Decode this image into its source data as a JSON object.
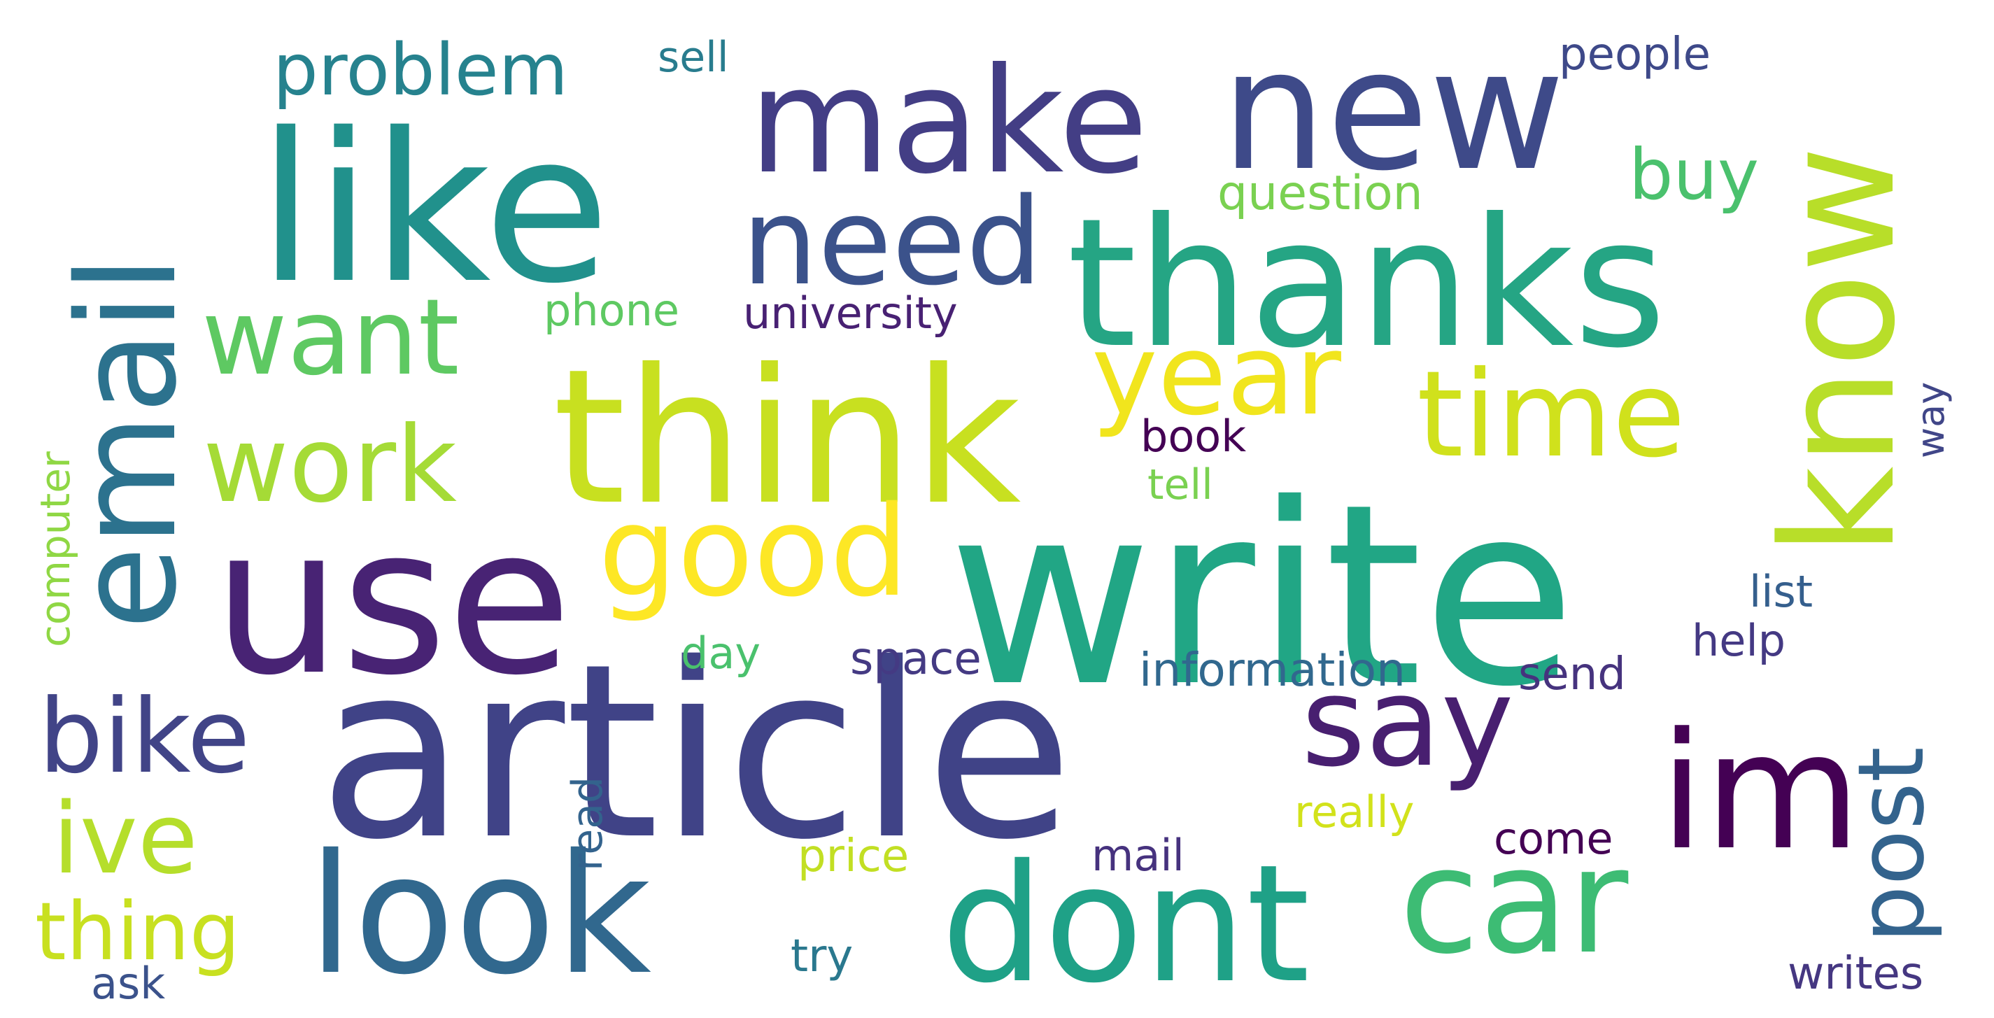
{
  "words": [
    {
      "text": "write",
      "color": "#21a685",
      "rotate": false
    },
    {
      "text": "article",
      "color": "#404387",
      "rotate": false
    },
    {
      "text": "thanks",
      "color": "#25a584",
      "rotate": false
    },
    {
      "text": "like",
      "color": "#21918c",
      "rotate": false
    },
    {
      "text": "use",
      "color": "#482374",
      "rotate": false
    },
    {
      "text": "think",
      "color": "#c8e020",
      "rotate": false
    },
    {
      "text": "know",
      "color": "#b8de29",
      "rotate": true
    },
    {
      "text": "email",
      "color": "#2c728e",
      "rotate": true
    },
    {
      "text": "new",
      "color": "#3e4a89",
      "rotate": false
    },
    {
      "text": "make",
      "color": "#433e85",
      "rotate": false
    },
    {
      "text": "dont",
      "color": "#1fa187",
      "rotate": false
    },
    {
      "text": "look",
      "color": "#31688e",
      "rotate": false
    },
    {
      "text": "car",
      "color": "#3dbc74",
      "rotate": false
    },
    {
      "text": "im",
      "color": "#440154",
      "rotate": false
    },
    {
      "text": "good",
      "color": "#fde725",
      "rotate": false
    },
    {
      "text": "need",
      "color": "#3b528b",
      "rotate": false
    },
    {
      "text": "time",
      "color": "#d0e11c",
      "rotate": false
    },
    {
      "text": "year",
      "color": "#f1e51d",
      "rotate": false
    },
    {
      "text": "say",
      "color": "#481f70",
      "rotate": false
    },
    {
      "text": "want",
      "color": "#5ec962",
      "rotate": false
    },
    {
      "text": "work",
      "color": "#a5db36",
      "rotate": false
    },
    {
      "text": "post",
      "color": "#33638d",
      "rotate": true
    },
    {
      "text": "bike",
      "color": "#414487",
      "rotate": false
    },
    {
      "text": "ive",
      "color": "#b5de2b",
      "rotate": false
    },
    {
      "text": "thing",
      "color": "#c8e020",
      "rotate": false
    },
    {
      "text": "problem",
      "color": "#26828e",
      "rotate": false
    },
    {
      "text": "buy",
      "color": "#4ac16d",
      "rotate": false
    },
    {
      "text": "question",
      "color": "#7ad151",
      "rotate": false
    },
    {
      "text": "university",
      "color": "#482173",
      "rotate": false
    },
    {
      "text": "phone",
      "color": "#5ec962",
      "rotate": false
    },
    {
      "text": "sell",
      "color": "#287c8e",
      "rotate": false
    },
    {
      "text": "people",
      "color": "#3e4989",
      "rotate": false
    },
    {
      "text": "book",
      "color": "#440154",
      "rotate": false
    },
    {
      "text": "tell",
      "color": "#7ad151",
      "rotate": false
    },
    {
      "text": "way",
      "color": "#404688",
      "rotate": true
    },
    {
      "text": "computer",
      "color": "#8fd744",
      "rotate": true
    },
    {
      "text": "list",
      "color": "#355f8d",
      "rotate": false
    },
    {
      "text": "help",
      "color": "#443983",
      "rotate": false
    },
    {
      "text": "information",
      "color": "#31688e",
      "rotate": false
    },
    {
      "text": "send",
      "color": "#46337e",
      "rotate": false
    },
    {
      "text": "day",
      "color": "#4ac16d",
      "rotate": false
    },
    {
      "text": "space",
      "color": "#443a83",
      "rotate": false
    },
    {
      "text": "read",
      "color": "#33638d",
      "rotate": true
    },
    {
      "text": "really",
      "color": "#d2e21b",
      "rotate": false
    },
    {
      "text": "come",
      "color": "#440154",
      "rotate": false
    },
    {
      "text": "price",
      "color": "#c2df23",
      "rotate": false
    },
    {
      "text": "mail",
      "color": "#46327e",
      "rotate": false
    },
    {
      "text": "try",
      "color": "#2a788e",
      "rotate": false
    },
    {
      "text": "ask",
      "color": "#3b528b",
      "rotate": false
    },
    {
      "text": "writes",
      "color": "#453781",
      "rotate": false
    }
  ]
}
